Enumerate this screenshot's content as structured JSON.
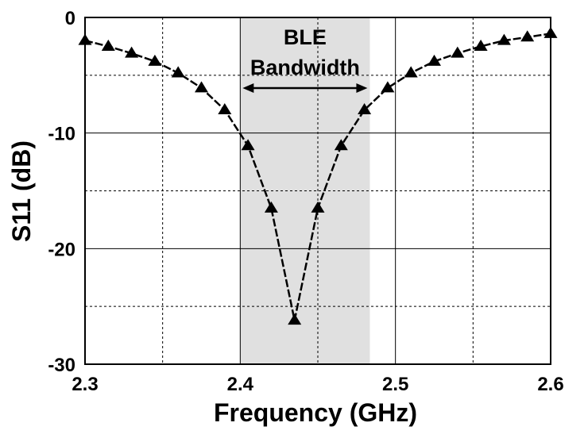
{
  "chart_data": {
    "type": "line",
    "title": "",
    "xlabel": "Frequency (GHz)",
    "ylabel": "S11 (dB)",
    "xlim": [
      2.3,
      2.6
    ],
    "ylim": [
      -30,
      0
    ],
    "x_ticks": [
      "2.3",
      "2.4",
      "2.5",
      "2.6"
    ],
    "y_ticks": [
      "0",
      "-10",
      "-20",
      "-30"
    ],
    "grid": true,
    "series": [
      {
        "marker": "triangle",
        "line_style": "dashed",
        "color": "#000000",
        "x": [
          2.3,
          2.315,
          2.33,
          2.345,
          2.36,
          2.375,
          2.39,
          2.405,
          2.42,
          2.435,
          2.45,
          2.465,
          2.48,
          2.495,
          2.51,
          2.525,
          2.54,
          2.555,
          2.57,
          2.585,
          2.6
        ],
        "y": [
          -2.0,
          -2.5,
          -3.1,
          -3.8,
          -4.8,
          -6.1,
          -8.0,
          -11.1,
          -16.5,
          -26.2,
          -16.5,
          -11.1,
          -8.0,
          -6.1,
          -4.8,
          -3.8,
          -3.1,
          -2.5,
          -2.0,
          -1.7,
          -1.4
        ]
      }
    ],
    "annotations": [
      {
        "text_lines": [
          "BLE",
          "Bandwidth"
        ],
        "x_range": [
          2.4,
          2.4835
        ],
        "fill": "#e0e0e0"
      }
    ]
  }
}
